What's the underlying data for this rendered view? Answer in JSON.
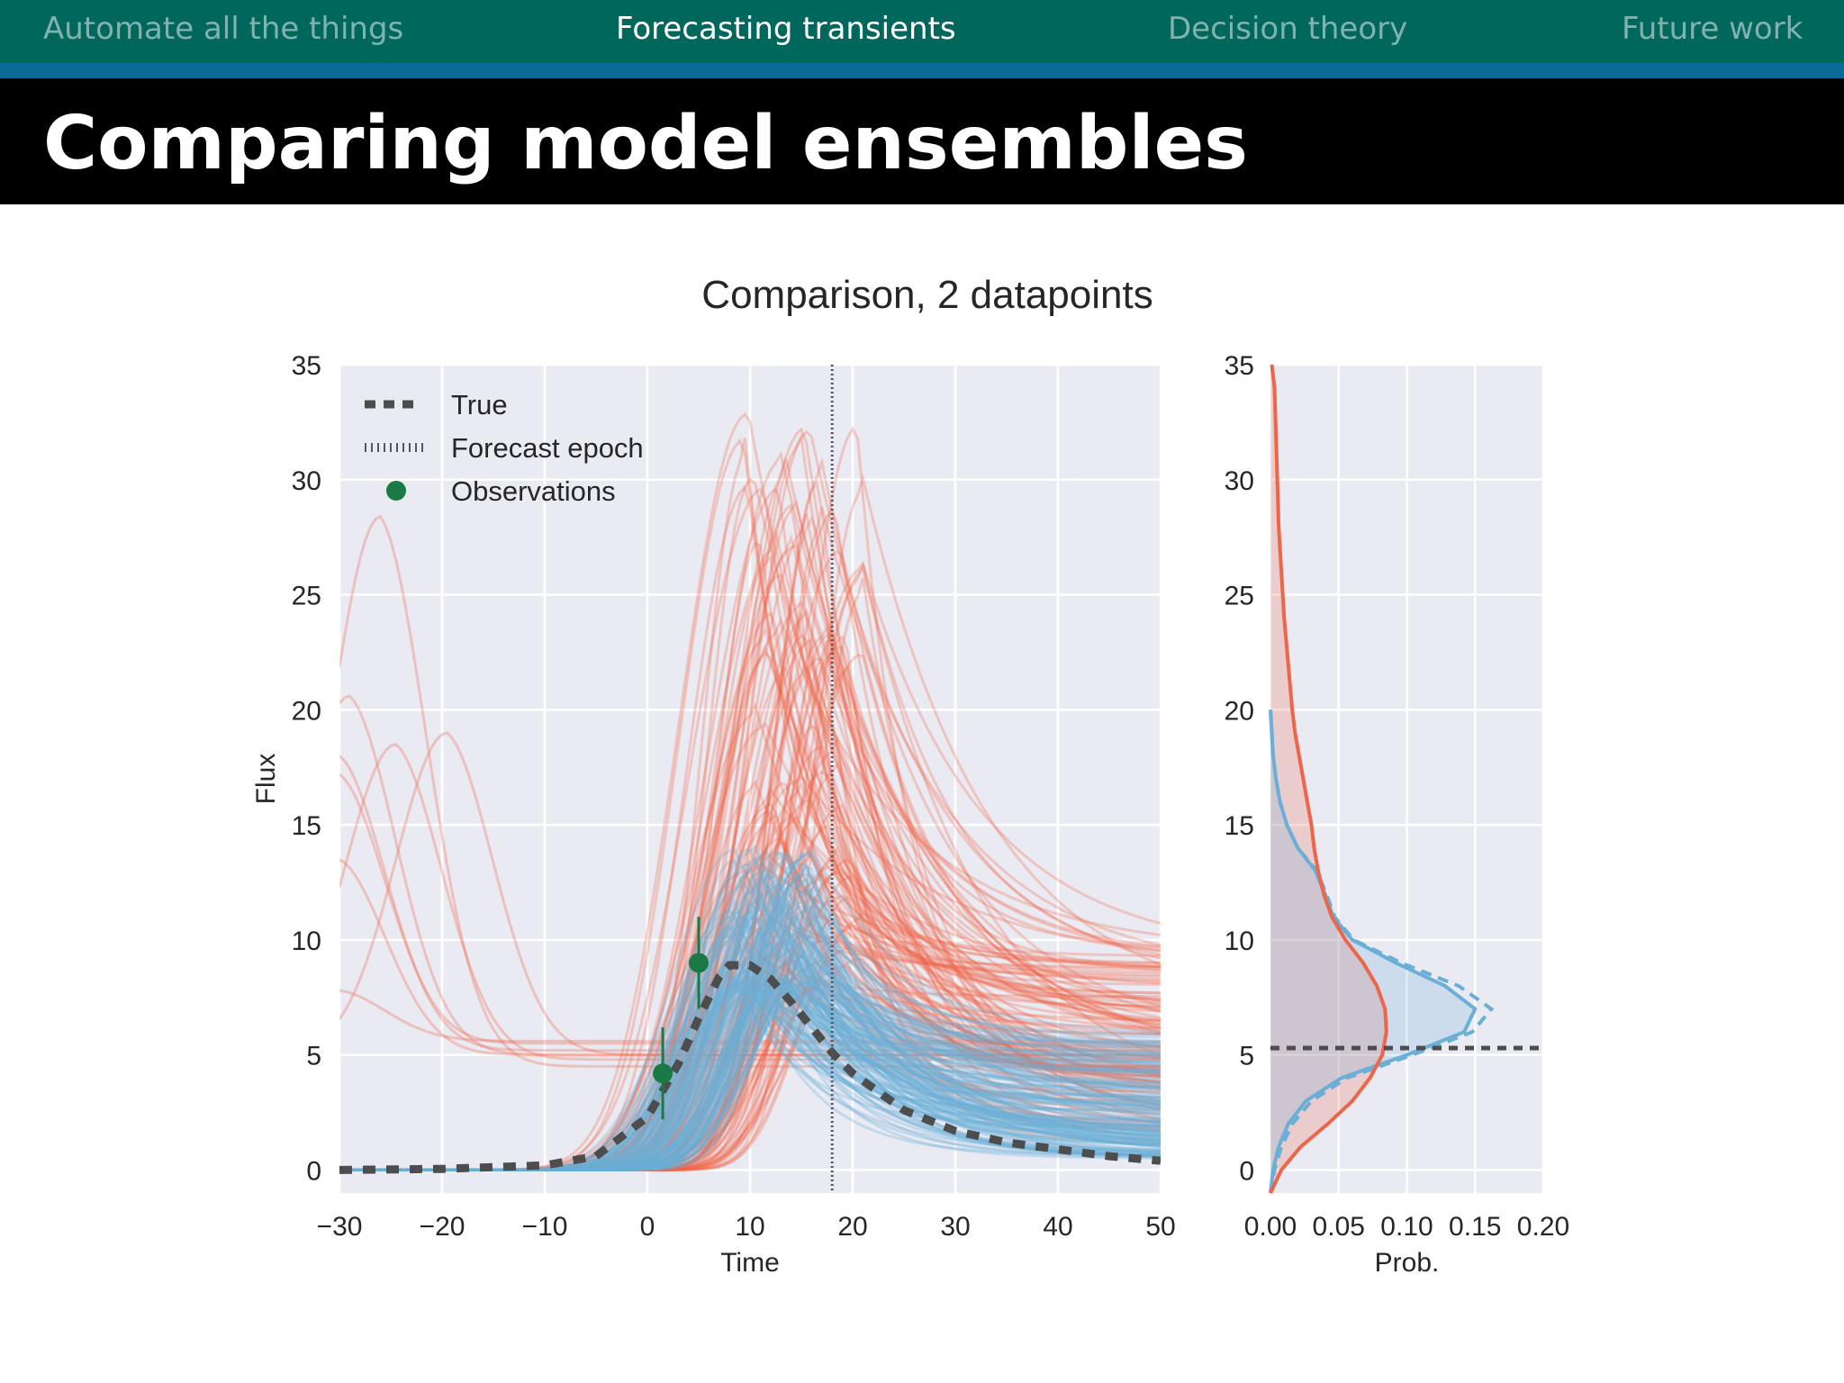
{
  "nav": {
    "items": [
      {
        "label": "Automate all the things",
        "active": false
      },
      {
        "label": "Forecasting transients",
        "active": true
      },
      {
        "label": "Decision theory",
        "active": false
      },
      {
        "label": "Future work",
        "active": false
      }
    ]
  },
  "slide": {
    "title": "Comparing model ensembles"
  },
  "colors": {
    "nav_bg": "#00675d",
    "strip": "#0a6a96",
    "title_bg": "#000000",
    "red": "#ef6548",
    "blue": "#6baed6",
    "true_line": "#4d4d4d",
    "observations": "#1a7a45",
    "axes_bg": "#eaeaf2"
  },
  "chart_data": [
    {
      "type": "line",
      "title": "Comparison, 2 datapoints",
      "xlabel": "Time",
      "ylabel": "Flux",
      "xlim": [
        -30,
        50
      ],
      "ylim": [
        -1,
        35
      ],
      "xticks": [
        -30,
        -20,
        -10,
        0,
        10,
        20,
        30,
        40,
        50
      ],
      "xtick_labels": [
        "−30",
        "−20",
        "−10",
        "0",
        "10",
        "20",
        "30",
        "40",
        "50"
      ],
      "yticks": [
        0,
        5,
        10,
        15,
        20,
        25,
        30,
        35
      ],
      "ytick_labels": [
        "0",
        "5",
        "10",
        "15",
        "20",
        "25",
        "30",
        "35"
      ],
      "grid": true,
      "legend": {
        "position": "top-left",
        "entries": [
          "True",
          "Forecast epoch",
          "Observations"
        ]
      },
      "forecast_epoch": 18,
      "true_curve": {
        "x": [
          -30,
          -20,
          -10,
          -5,
          0,
          3,
          5,
          7,
          8,
          10,
          12,
          14,
          16,
          18,
          20,
          25,
          30,
          35,
          40,
          45,
          50
        ],
        "y": [
          0,
          0.05,
          0.2,
          0.6,
          2.3,
          4.6,
          6.6,
          8.4,
          8.9,
          8.9,
          8.3,
          7.3,
          6.2,
          5.1,
          4.2,
          2.6,
          1.7,
          1.2,
          0.9,
          0.6,
          0.4
        ]
      },
      "observations": [
        {
          "x": 1.5,
          "y": 4.2,
          "yerr": 2.0
        },
        {
          "x": 5,
          "y": 9.0,
          "yerr": 2.0
        }
      ],
      "ensembles": [
        {
          "name": "red ensemble",
          "color": "#ef6548",
          "peak_time_range": [
            9,
            21
          ],
          "peak_flux_range": [
            8,
            34
          ],
          "late_flux_range": [
            1,
            9.5
          ]
        },
        {
          "name": "blue ensemble",
          "color": "#6baed6",
          "peak_time_range": [
            8,
            16
          ],
          "peak_flux_range": [
            8,
            14.5
          ],
          "late_flux_range": [
            0.5,
            6
          ]
        }
      ],
      "outlier_red_curves": [
        {
          "peak_time": -26,
          "peak_flux": 28.4,
          "baseline": 4.5
        },
        {
          "peak_time": -29,
          "peak_flux": 20.6,
          "baseline": 5.0
        },
        {
          "peak_time": -24.5,
          "peak_flux": 18.5,
          "baseline": 4.8
        },
        {
          "peak_time": -19.5,
          "peak_flux": 19.0,
          "baseline": 5.0
        },
        {
          "peak_time": -30,
          "peak_flux": 18.0,
          "baseline": 5.2
        },
        {
          "peak_time": -30,
          "peak_flux": 17.2,
          "baseline": 5.5
        },
        {
          "peak_time": -30,
          "peak_flux": 13.5,
          "baseline": 5.0
        },
        {
          "peak_time": -30,
          "peak_flux": 7.8,
          "baseline": 5.6
        }
      ]
    },
    {
      "type": "line",
      "title": "",
      "xlabel": "Prob.",
      "ylabel": "",
      "xlim": [
        0,
        0.2
      ],
      "ylim": [
        -1,
        35
      ],
      "xticks": [
        0,
        0.05,
        0.1,
        0.15,
        0.2
      ],
      "xtick_labels": [
        "0.00",
        "0.05",
        "0.10",
        "0.15",
        "0.20"
      ],
      "yticks": [
        0,
        5,
        10,
        15,
        20,
        25,
        30,
        35
      ],
      "ytick_labels": [
        "0",
        "5",
        "10",
        "15",
        "20",
        "25",
        "30",
        "35"
      ],
      "grid": true,
      "true_value": 5.3,
      "red_distribution": {
        "flux": [
          -1,
          0,
          1,
          2,
          3,
          4,
          5,
          6,
          7,
          8,
          9,
          10,
          11,
          12,
          13,
          14,
          15,
          16,
          17,
          18,
          19,
          20,
          22,
          24,
          26,
          28,
          30,
          32,
          34,
          35
        ],
        "prob": [
          0.0,
          0.008,
          0.022,
          0.042,
          0.06,
          0.073,
          0.082,
          0.085,
          0.084,
          0.078,
          0.068,
          0.055,
          0.045,
          0.039,
          0.035,
          0.032,
          0.03,
          0.027,
          0.024,
          0.021,
          0.018,
          0.016,
          0.013,
          0.01,
          0.008,
          0.006,
          0.005,
          0.004,
          0.003,
          0.001
        ]
      },
      "blue_distribution": {
        "flux": [
          -1,
          0,
          1,
          2,
          3,
          4,
          5,
          6,
          7,
          8,
          9,
          10,
          11,
          12,
          13,
          14,
          15,
          16,
          17,
          18,
          19,
          20
        ],
        "prob": [
          0.0,
          0.002,
          0.006,
          0.013,
          0.026,
          0.052,
          0.1,
          0.142,
          0.15,
          0.128,
          0.092,
          0.06,
          0.046,
          0.04,
          0.033,
          0.02,
          0.012,
          0.007,
          0.004,
          0.002,
          0.001,
          0.0
        ]
      },
      "blue_dashed_distribution": {
        "flux": [
          -1,
          0,
          1,
          2,
          3,
          4,
          5,
          6,
          7,
          8,
          9,
          10,
          11,
          12,
          13,
          14,
          15,
          16,
          17,
          18,
          19,
          20
        ],
        "prob": [
          0.0,
          0.003,
          0.008,
          0.016,
          0.03,
          0.056,
          0.104,
          0.148,
          0.162,
          0.138,
          0.096,
          0.061,
          0.047,
          0.041,
          0.034,
          0.02,
          0.012,
          0.007,
          0.004,
          0.002,
          0.001,
          0.0
        ]
      }
    }
  ]
}
